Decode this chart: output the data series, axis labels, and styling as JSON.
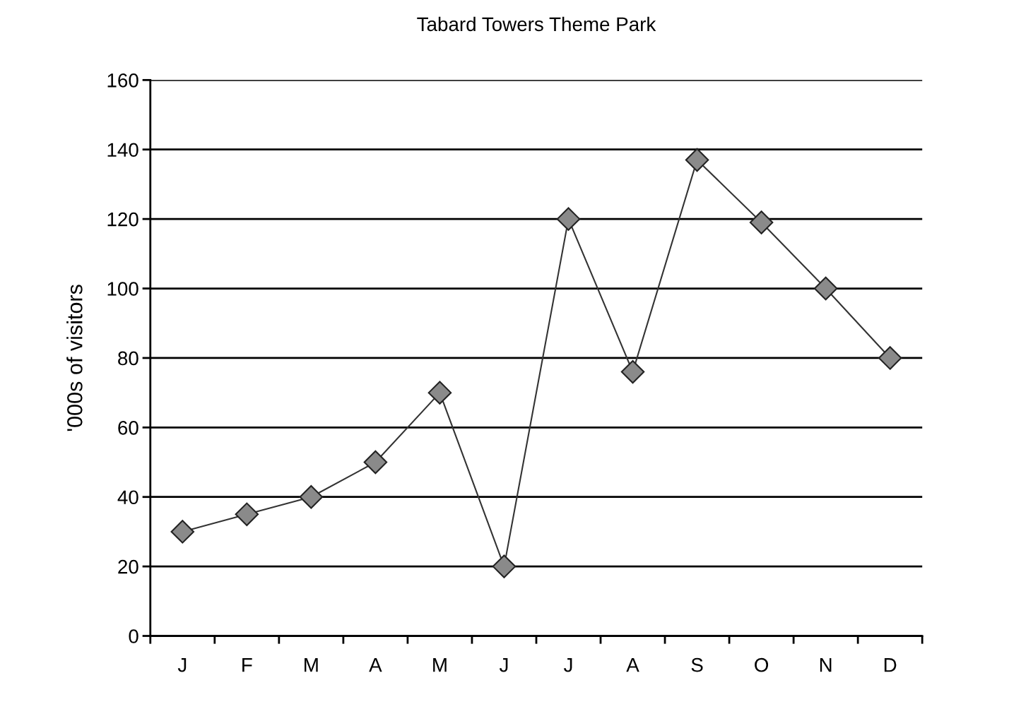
{
  "chart_data": {
    "type": "line",
    "title": "Tabard Towers Theme Park",
    "ylabel": "'000s of visitors",
    "categories": [
      "J",
      "F",
      "M",
      "A",
      "M",
      "J",
      "J",
      "A",
      "S",
      "O",
      "N",
      "D"
    ],
    "series": [
      {
        "color": "#333333",
        "values": [
          30,
          35,
          40,
          50,
          70,
          20,
          120,
          76,
          137,
          119,
          100,
          80
        ]
      }
    ],
    "ylim": [
      0,
      160
    ],
    "yticks": [
      0,
      20,
      40,
      60,
      80,
      100,
      120,
      140,
      160
    ],
    "grid": "y",
    "marker": "diamond",
    "line_style": "solid"
  }
}
